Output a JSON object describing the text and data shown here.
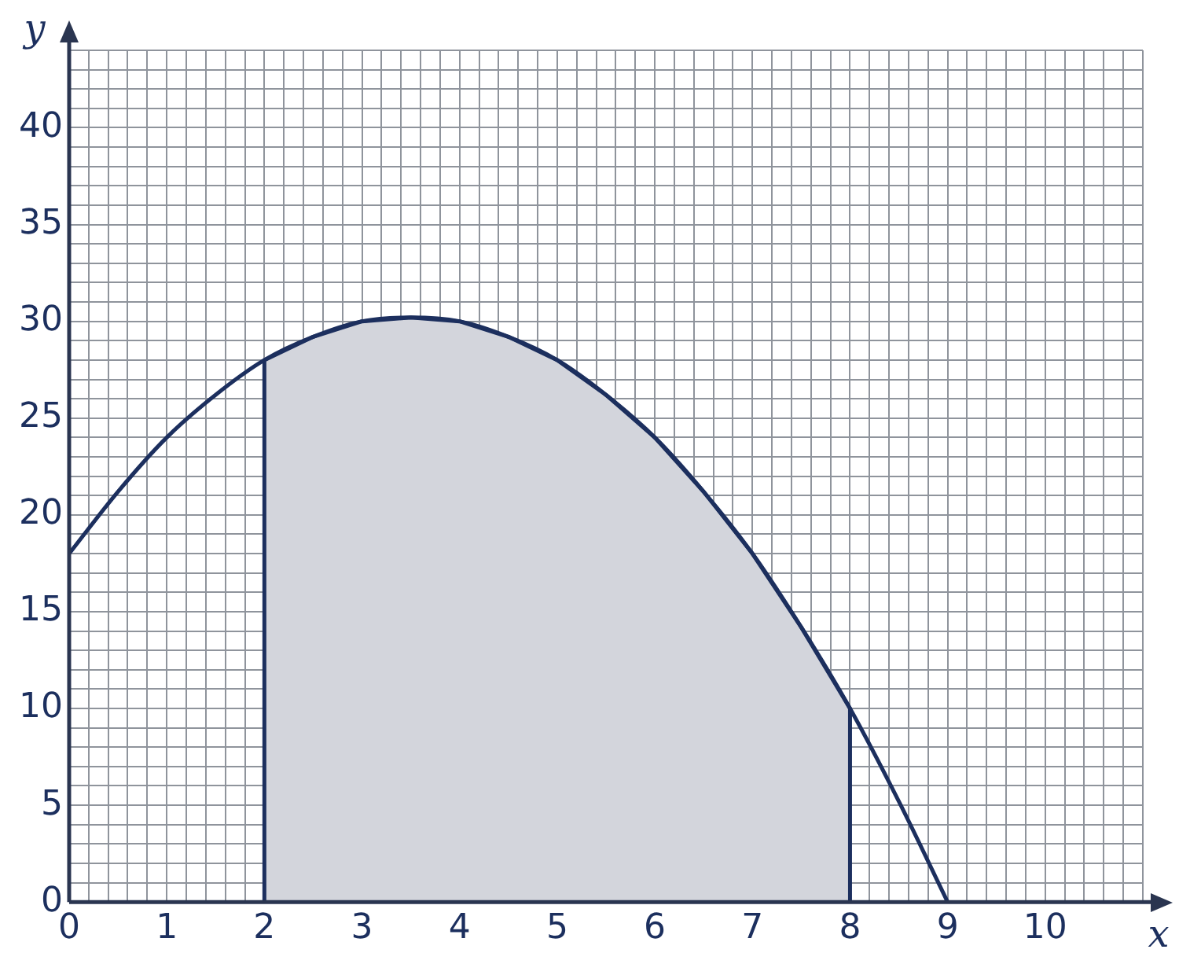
{
  "chart_data": {
    "type": "line",
    "xlabel": "x",
    "ylabel": "y",
    "xlim": [
      0,
      11
    ],
    "ylim": [
      0,
      44
    ],
    "xticks": [
      0,
      {
        "value": 0.2,
        "label": null
      },
      {
        "value": 0.4,
        "label": null
      },
      {
        "value": 0.6,
        "label": null
      },
      {
        "value": 0.8,
        "label": null
      },
      1,
      {
        "value": 1.2,
        "label": null
      },
      {
        "value": 1.4,
        "label": null
      },
      {
        "value": 1.6,
        "label": null
      },
      {
        "value": 1.8,
        "label": null
      },
      2,
      {
        "value": 2.2,
        "label": null
      },
      {
        "value": 2.4,
        "label": null
      },
      {
        "value": 2.6,
        "label": null
      },
      {
        "value": 2.8,
        "label": null
      },
      3,
      {
        "value": 3.2,
        "label": null
      },
      {
        "value": 3.4,
        "label": null
      },
      {
        "value": 3.6,
        "label": null
      },
      {
        "value": 3.8,
        "label": null
      },
      4,
      {
        "value": 4.2,
        "label": null
      },
      {
        "value": 4.4,
        "label": null
      },
      {
        "value": 4.6,
        "label": null
      },
      {
        "value": 4.8,
        "label": null
      },
      5,
      {
        "value": 5.2,
        "label": null
      },
      {
        "value": 5.4,
        "label": null
      },
      {
        "value": 5.6,
        "label": null
      },
      {
        "value": 5.8,
        "label": null
      },
      6,
      {
        "value": 6.2,
        "label": null
      },
      {
        "value": 6.4,
        "label": null
      },
      {
        "value": 6.6,
        "label": null
      },
      {
        "value": 6.8,
        "label": null
      },
      7,
      {
        "value": 7.2,
        "label": null
      },
      {
        "value": 7.4,
        "label": null
      },
      {
        "value": 7.6,
        "label": null
      },
      {
        "value": 7.8,
        "label": null
      },
      8,
      {
        "value": 8.2,
        "label": null
      },
      {
        "value": 8.4,
        "label": null
      },
      {
        "value": 8.6,
        "label": null
      },
      {
        "value": 8.8,
        "label": null
      },
      9,
      {
        "value": 9.2,
        "label": null
      },
      {
        "value": 9.4,
        "label": null
      },
      {
        "value": 9.6,
        "label": null
      },
      {
        "value": 9.8,
        "label": null
      },
      10,
      {
        "value": 10.2,
        "label": null
      },
      {
        "value": 10.4,
        "label": null
      },
      {
        "value": 10.6,
        "label": null
      },
      {
        "value": 10.8,
        "label": null
      },
      {
        "value": 11,
        "label": null
      }
    ],
    "yticks": [
      0,
      {
        "value": 1,
        "label": null
      },
      {
        "value": 2,
        "label": null
      },
      {
        "value": 3,
        "label": null
      },
      {
        "value": 4,
        "label": null
      },
      5,
      {
        "value": 6,
        "label": null
      },
      {
        "value": 7,
        "label": null
      },
      {
        "value": 8,
        "label": null
      },
      {
        "value": 9,
        "label": null
      },
      10,
      {
        "value": 11,
        "label": null
      },
      {
        "value": 12,
        "label": null
      },
      {
        "value": 13,
        "label": null
      },
      {
        "value": 14,
        "label": null
      },
      15,
      {
        "value": 16,
        "label": null
      },
      {
        "value": 17,
        "label": null
      },
      {
        "value": 18,
        "label": null
      },
      {
        "value": 19,
        "label": null
      },
      20,
      {
        "value": 21,
        "label": null
      },
      {
        "value": 22,
        "label": null
      },
      {
        "value": 23,
        "label": null
      },
      {
        "value": 24,
        "label": null
      },
      25,
      {
        "value": 26,
        "label": null
      },
      {
        "value": 27,
        "label": null
      },
      {
        "value": 28,
        "label": null
      },
      {
        "value": 29,
        "label": null
      },
      30,
      {
        "value": 31,
        "label": null
      },
      {
        "value": 32,
        "label": null
      },
      {
        "value": 33,
        "label": null
      },
      {
        "value": 34,
        "label": null
      },
      35,
      {
        "value": 36,
        "label": null
      },
      {
        "value": 37,
        "label": null
      },
      {
        "value": 38,
        "label": null
      },
      {
        "value": 39,
        "label": null
      },
      40,
      {
        "value": 41,
        "label": null
      },
      {
        "value": 42,
        "label": null
      },
      {
        "value": 43,
        "label": null
      },
      {
        "value": 44,
        "label": null
      }
    ],
    "grid": true,
    "marker": "none",
    "line_style": "solid",
    "series": [
      {
        "type": "area",
        "color": "#d3d5dc",
        "x": [
          2,
          2,
          2.5,
          3,
          3.5,
          4,
          4.5,
          5,
          5.5,
          6,
          6.5,
          7,
          7.5,
          8,
          8
        ],
        "values": [
          0,
          28,
          29.2,
          30,
          30.2,
          30,
          29.2,
          28,
          26.2,
          24,
          21.2,
          18,
          14.2,
          10,
          0
        ]
      },
      {
        "type": "line",
        "color": "#1c2f5e",
        "x": [
          0,
          0.5,
          1,
          1.5,
          2,
          2.5,
          3,
          3.5,
          4,
          4.5,
          5,
          5.5,
          6,
          6.5,
          7,
          7.5,
          8,
          8.5,
          9
        ],
        "values": [
          18,
          21.2,
          24,
          26.2,
          28,
          29.2,
          30,
          30.2,
          30,
          29.2,
          28,
          26.2,
          24,
          21.2,
          18,
          14.2,
          10,
          5.2,
          0
        ]
      }
    ]
  }
}
